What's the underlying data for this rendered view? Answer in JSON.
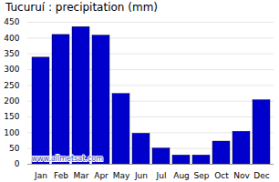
{
  "chart_data": {
    "type": "bar",
    "title": "Tucuruí : precipitation (mm)",
    "categories": [
      "Jan",
      "Feb",
      "Mar",
      "Apr",
      "May",
      "Jun",
      "Jul",
      "Aug",
      "Sep",
      "Oct",
      "Nov",
      "Dec"
    ],
    "values": [
      338,
      410,
      435,
      408,
      223,
      97,
      50,
      28,
      28,
      72,
      103,
      203
    ],
    "color": "#0000cc",
    "ylim": [
      0,
      450
    ],
    "yticks": [
      0,
      50,
      100,
      150,
      200,
      250,
      300,
      350,
      400,
      450
    ],
    "grid": true,
    "annotation": "www.allmetsat.com"
  }
}
